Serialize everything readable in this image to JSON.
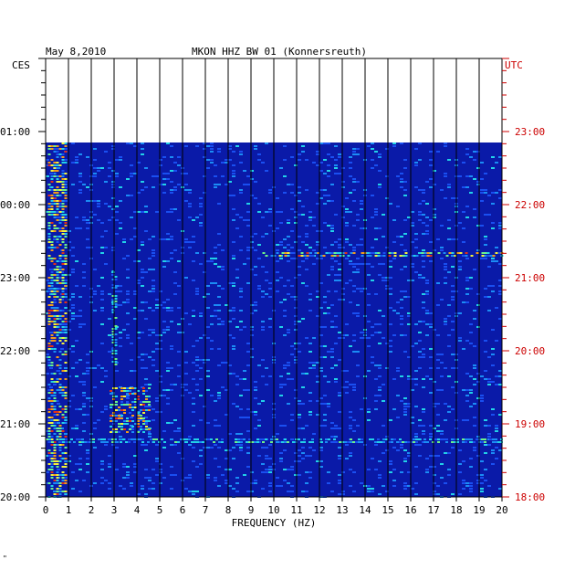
{
  "header": {
    "date": "May 8,2010",
    "station": "MKON HHZ BW 01 (Konnersreuth)"
  },
  "left_zone": "CES",
  "right_zone": "UTC",
  "corner_mark": "\"",
  "colors": {
    "background": "#0a1aa8",
    "grid": "#000000",
    "left_labels": "#000000",
    "right_labels": "#cc0000"
  },
  "chart_data": {
    "type": "heatmap",
    "title": "MKON HHZ BW 01 (Konnersreuth)",
    "xlabel": "FREQUENCY (HZ)",
    "ylabel": "",
    "xlim": [
      0,
      20
    ],
    "x_ticks": [
      "0",
      "1",
      "2",
      "3",
      "4",
      "5",
      "6",
      "7",
      "8",
      "9",
      "10",
      "11",
      "12",
      "13",
      "14",
      "15",
      "16",
      "17",
      "18",
      "19",
      "20"
    ],
    "y_ticks_left": [
      "01:00",
      "00:00",
      "23:00",
      "22:00",
      "21:00",
      "20:00"
    ],
    "y_ticks_right": [
      "23:00",
      "22:00",
      "21:00",
      "20:00",
      "19:00",
      "18:00"
    ],
    "time_range_utc_hours": [
      18,
      23
    ],
    "data_start_utc_hours": 22.85,
    "features": [
      {
        "name": "low-frequency band",
        "freq_hz": [
          0.1,
          0.9
        ],
        "utc_hours": [
          18.0,
          22.85
        ],
        "intensity": "high"
      },
      {
        "name": "3-4 Hz burst",
        "freq_hz": [
          2.8,
          4.6
        ],
        "utc_hours": [
          18.9,
          19.5
        ],
        "intensity": "high"
      },
      {
        "name": "~3 Hz line",
        "freq_hz": [
          2.9,
          3.1
        ],
        "utc_hours": [
          19.8,
          21.1
        ],
        "intensity": "medium"
      },
      {
        "name": "broadband line",
        "freq_hz": [
          9.5,
          20.0
        ],
        "utc_hours": [
          21.3,
          21.35
        ],
        "intensity": "high"
      },
      {
        "name": "broadband line",
        "freq_hz": [
          0.0,
          20.0
        ],
        "utc_hours": [
          18.75,
          18.8
        ],
        "intensity": "medium"
      }
    ]
  }
}
